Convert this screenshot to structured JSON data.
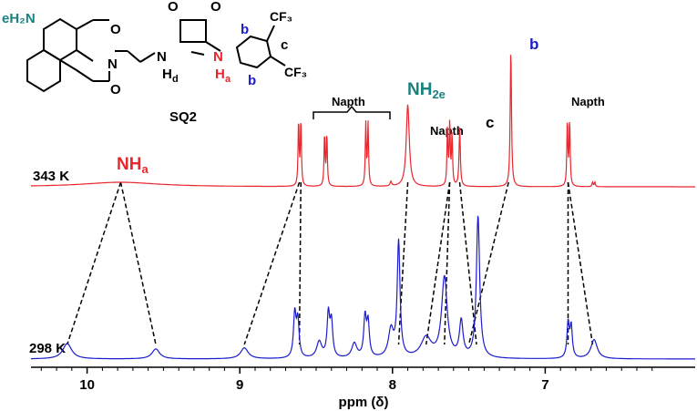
{
  "chart_data": {
    "type": "line",
    "title": "",
    "xlabel": "ppm (δ)",
    "ylabel": "",
    "x_reversed": true,
    "xlim": [
      10.45,
      6.24
    ],
    "xticks": [
      10,
      9,
      8,
      7
    ],
    "xtick_labels": [
      "10",
      "9",
      "8",
      "7"
    ],
    "colors": {
      "343K": "#e8262d",
      "298K": "#1c1ccc",
      "teal": "#1a8080",
      "red": "#e8262d",
      "blue": "#1c1ccc"
    },
    "series": [
      {
        "name": "343 K",
        "baseline": 0,
        "peaks": [
          {
            "ppm": 9.78,
            "height": 5,
            "width": 0.3
          },
          {
            "ppm": 8.615,
            "height": 72,
            "width": 0.004
          },
          {
            "ppm": 8.6,
            "height": 72,
            "width": 0.004
          },
          {
            "ppm": 8.445,
            "height": 57,
            "width": 0.004
          },
          {
            "ppm": 8.43,
            "height": 57,
            "width": 0.004
          },
          {
            "ppm": 8.175,
            "height": 68,
            "width": 0.004
          },
          {
            "ppm": 8.16,
            "height": 68,
            "width": 0.004
          },
          {
            "ppm": 8.01,
            "height": 5,
            "width": 0.006
          },
          {
            "ppm": 7.9,
            "height": 90,
            "width": 0.012
          },
          {
            "ppm": 7.64,
            "height": 63,
            "width": 0.004
          },
          {
            "ppm": 7.625,
            "height": 68,
            "width": 0.004
          },
          {
            "ppm": 7.61,
            "height": 56,
            "width": 0.004
          },
          {
            "ppm": 7.56,
            "height": 64,
            "width": 0.005
          },
          {
            "ppm": 7.225,
            "height": 152,
            "width": 0.005
          },
          {
            "ppm": 6.855,
            "height": 72,
            "width": 0.004
          },
          {
            "ppm": 6.84,
            "height": 72,
            "width": 0.004
          },
          {
            "ppm": 6.69,
            "height": 5,
            "width": 0.004
          },
          {
            "ppm": 6.675,
            "height": 5,
            "width": 0.004
          }
        ]
      },
      {
        "name": "298 K",
        "baseline": 0,
        "peaks": [
          {
            "ppm": 10.13,
            "height": 17,
            "width": 0.035
          },
          {
            "ppm": 9.55,
            "height": 11,
            "width": 0.03
          },
          {
            "ppm": 8.97,
            "height": 12,
            "width": 0.03
          },
          {
            "ppm": 8.64,
            "height": 48,
            "width": 0.01
          },
          {
            "ppm": 8.62,
            "height": 40,
            "width": 0.01
          },
          {
            "ppm": 8.48,
            "height": 18,
            "width": 0.02
          },
          {
            "ppm": 8.42,
            "height": 47,
            "width": 0.01
          },
          {
            "ppm": 8.4,
            "height": 38,
            "width": 0.01
          },
          {
            "ppm": 8.25,
            "height": 16,
            "width": 0.02
          },
          {
            "ppm": 8.18,
            "height": 43,
            "width": 0.01
          },
          {
            "ppm": 8.16,
            "height": 37,
            "width": 0.01
          },
          {
            "ppm": 8.01,
            "height": 30,
            "width": 0.02
          },
          {
            "ppm": 7.96,
            "height": 126,
            "width": 0.011
          },
          {
            "ppm": 7.78,
            "height": 22,
            "width": 0.04
          },
          {
            "ppm": 7.66,
            "height": 88,
            "width": 0.022
          },
          {
            "ppm": 7.55,
            "height": 39,
            "width": 0.014
          },
          {
            "ppm": 7.44,
            "height": 156,
            "width": 0.013
          },
          {
            "ppm": 6.85,
            "height": 38,
            "width": 0.009
          },
          {
            "ppm": 6.83,
            "height": 34,
            "width": 0.009
          },
          {
            "ppm": 6.68,
            "height": 21,
            "width": 0.025
          }
        ]
      }
    ],
    "correlations": [
      {
        "from": 9.78,
        "to": 10.13
      },
      {
        "from": 9.78,
        "to": 9.55
      },
      {
        "from": 8.61,
        "to": 8.97
      },
      {
        "from": 8.6,
        "to": 8.61
      },
      {
        "from": 7.9,
        "to": 7.96
      },
      {
        "from": 7.625,
        "to": 7.78
      },
      {
        "from": 7.625,
        "to": 7.66
      },
      {
        "from": 7.56,
        "to": 7.45
      },
      {
        "from": 7.24,
        "to": 7.5
      },
      {
        "from": 6.85,
        "to": 6.85
      },
      {
        "from": 6.85,
        "to": 6.69
      }
    ],
    "annotations": {
      "temp_343": "343 K",
      "temp_298": "298 K",
      "nha_main": "NH",
      "nha_sub": "a",
      "napth_1": "Napth",
      "nh2e_main": "NH",
      "nh2e_sub": "2e",
      "napth_2": "Napth",
      "c_label": "c",
      "b_label": "b",
      "napth_3": "Napth"
    },
    "structure": {
      "name": "SQ2",
      "eh2n": "eH₂N",
      "o1": "O",
      "o2": "O",
      "o3": "O",
      "o4": "O",
      "n_imide": "N",
      "n_d": "N",
      "h_d": "H",
      "h_d_sub": "d",
      "n_a": "N",
      "h_a": "H",
      "h_a_sub": "a",
      "cf3_top": "CF₃",
      "cf3_bottom": "CF₃",
      "b_top": "b",
      "b_bottom": "b",
      "c_ring": "c"
    }
  }
}
